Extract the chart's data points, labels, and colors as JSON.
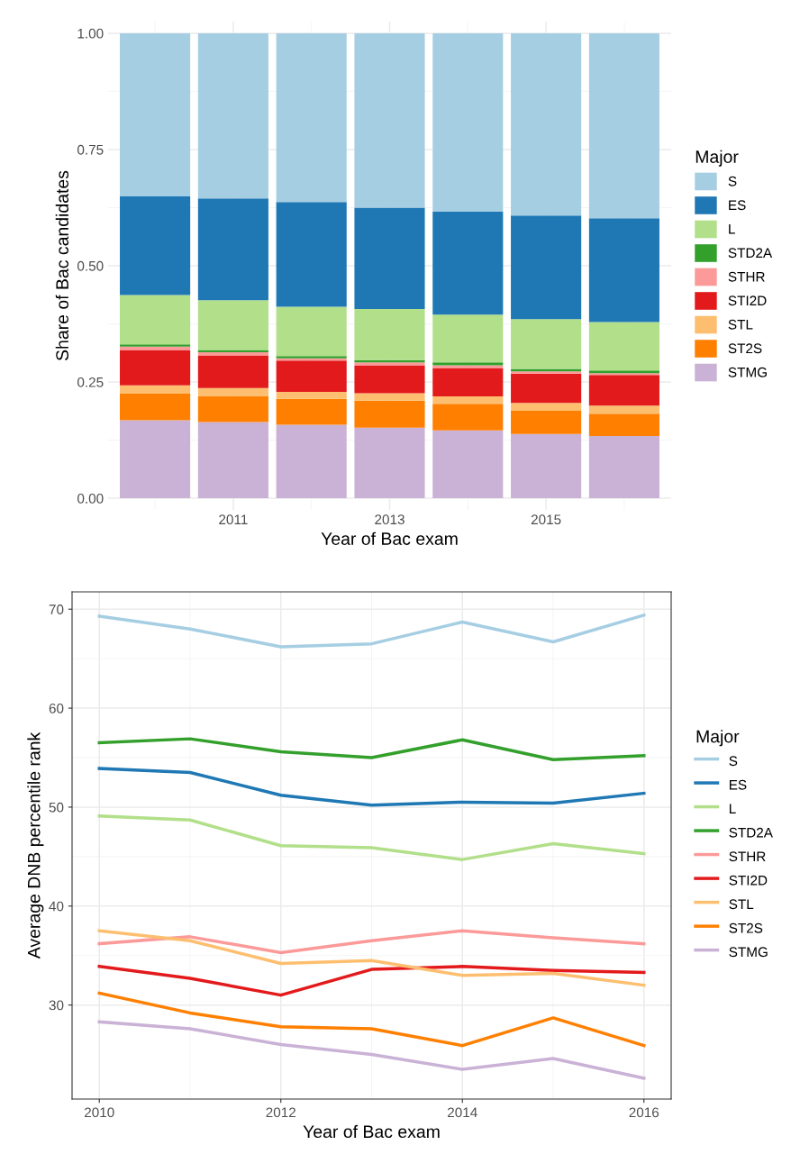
{
  "chart_data": [
    {
      "type": "bar",
      "stacked": true,
      "xlabel": "Year of Bac exam",
      "ylabel": "Share of Bac candidates",
      "legend_title": "Major",
      "legend": "right",
      "grid": true,
      "x": [
        2010,
        2011,
        2012,
        2013,
        2014,
        2015,
        2016
      ],
      "xlim": [
        2009.4,
        2016.6
      ],
      "xticks": [
        2011,
        2013,
        2015
      ],
      "ylim": [
        -0.025,
        1.025
      ],
      "yticks": [
        {
          "value": 0,
          "label": "0.00"
        },
        {
          "value": 0.25,
          "label": "0.25"
        },
        {
          "value": 0.5,
          "label": "0.50"
        },
        {
          "value": 0.75,
          "label": "0.75"
        },
        {
          "value": 1,
          "label": "1.00"
        }
      ],
      "series": [
        {
          "name": "STMG",
          "color": "#cab2d6",
          "values": [
            0.168,
            0.164,
            0.158,
            0.152,
            0.146,
            0.138,
            0.134
          ]
        },
        {
          "name": "ST2S",
          "color": "#ff7f00",
          "values": [
            0.058,
            0.056,
            0.056,
            0.058,
            0.057,
            0.05,
            0.048
          ]
        },
        {
          "name": "STL",
          "color": "#fdbf6f",
          "values": [
            0.017,
            0.017,
            0.015,
            0.016,
            0.016,
            0.017,
            0.017
          ]
        },
        {
          "name": "STI2D",
          "color": "#e31a1c",
          "values": [
            0.076,
            0.07,
            0.067,
            0.06,
            0.061,
            0.063,
            0.066
          ]
        },
        {
          "name": "STHR",
          "color": "#fb9a99",
          "values": [
            0.007,
            0.007,
            0.005,
            0.006,
            0.006,
            0.005,
            0.004
          ]
        },
        {
          "name": "STD2A",
          "color": "#33a02c",
          "values": [
            0.005,
            0.005,
            0.005,
            0.005,
            0.006,
            0.005,
            0.006
          ]
        },
        {
          "name": "L",
          "color": "#b2df8a",
          "values": [
            0.106,
            0.107,
            0.106,
            0.11,
            0.103,
            0.107,
            0.104
          ]
        },
        {
          "name": "ES",
          "color": "#1f78b4",
          "values": [
            0.212,
            0.219,
            0.225,
            0.218,
            0.221,
            0.223,
            0.223
          ]
        },
        {
          "name": "S",
          "color": "#a6cee3",
          "values": [
            0.351,
            0.355,
            0.363,
            0.375,
            0.384,
            0.392,
            0.398
          ]
        }
      ]
    },
    {
      "type": "line",
      "xlabel": "Year of Bac exam",
      "ylabel": "Average DNB percentile rank",
      "legend_title": "Major",
      "legend": "right",
      "grid": true,
      "line_style": "solid",
      "x": [
        2010,
        2011,
        2012,
        2013,
        2014,
        2015,
        2016
      ],
      "xlim": [
        2009.7,
        2016.3
      ],
      "xticks": [
        2010,
        2012,
        2014,
        2016
      ],
      "ylim": [
        20.5,
        71.75
      ],
      "yticks": [
        30,
        40,
        50,
        60,
        70
      ],
      "series": [
        {
          "name": "S",
          "color": "#a6cee3",
          "values": [
            69.3,
            68.0,
            66.2,
            66.5,
            68.7,
            66.7,
            69.4
          ]
        },
        {
          "name": "ES",
          "color": "#1f78b4",
          "values": [
            53.9,
            53.5,
            51.2,
            50.2,
            50.5,
            50.4,
            51.4
          ]
        },
        {
          "name": "L",
          "color": "#b2df8a",
          "values": [
            49.1,
            48.7,
            46.1,
            45.9,
            44.7,
            46.3,
            45.3
          ]
        },
        {
          "name": "STD2A",
          "color": "#33a02c",
          "values": [
            56.5,
            56.9,
            55.6,
            55.0,
            56.8,
            54.8,
            55.2
          ]
        },
        {
          "name": "STHR",
          "color": "#fb9a99",
          "values": [
            36.2,
            36.9,
            35.3,
            36.5,
            37.5,
            36.8,
            36.2
          ]
        },
        {
          "name": "STI2D",
          "color": "#e31a1c",
          "values": [
            33.9,
            32.7,
            31.0,
            33.6,
            33.9,
            33.5,
            33.3
          ]
        },
        {
          "name": "STL",
          "color": "#fdbf6f",
          "values": [
            37.5,
            36.5,
            34.2,
            34.5,
            33.0,
            33.2,
            32.0
          ]
        },
        {
          "name": "ST2S",
          "color": "#ff7f00",
          "values": [
            31.2,
            29.2,
            27.8,
            27.6,
            25.9,
            28.7,
            25.9
          ]
        },
        {
          "name": "STMG",
          "color": "#cab2d6",
          "values": [
            28.3,
            27.6,
            26.0,
            25.0,
            23.5,
            24.6,
            22.6
          ]
        }
      ]
    }
  ]
}
